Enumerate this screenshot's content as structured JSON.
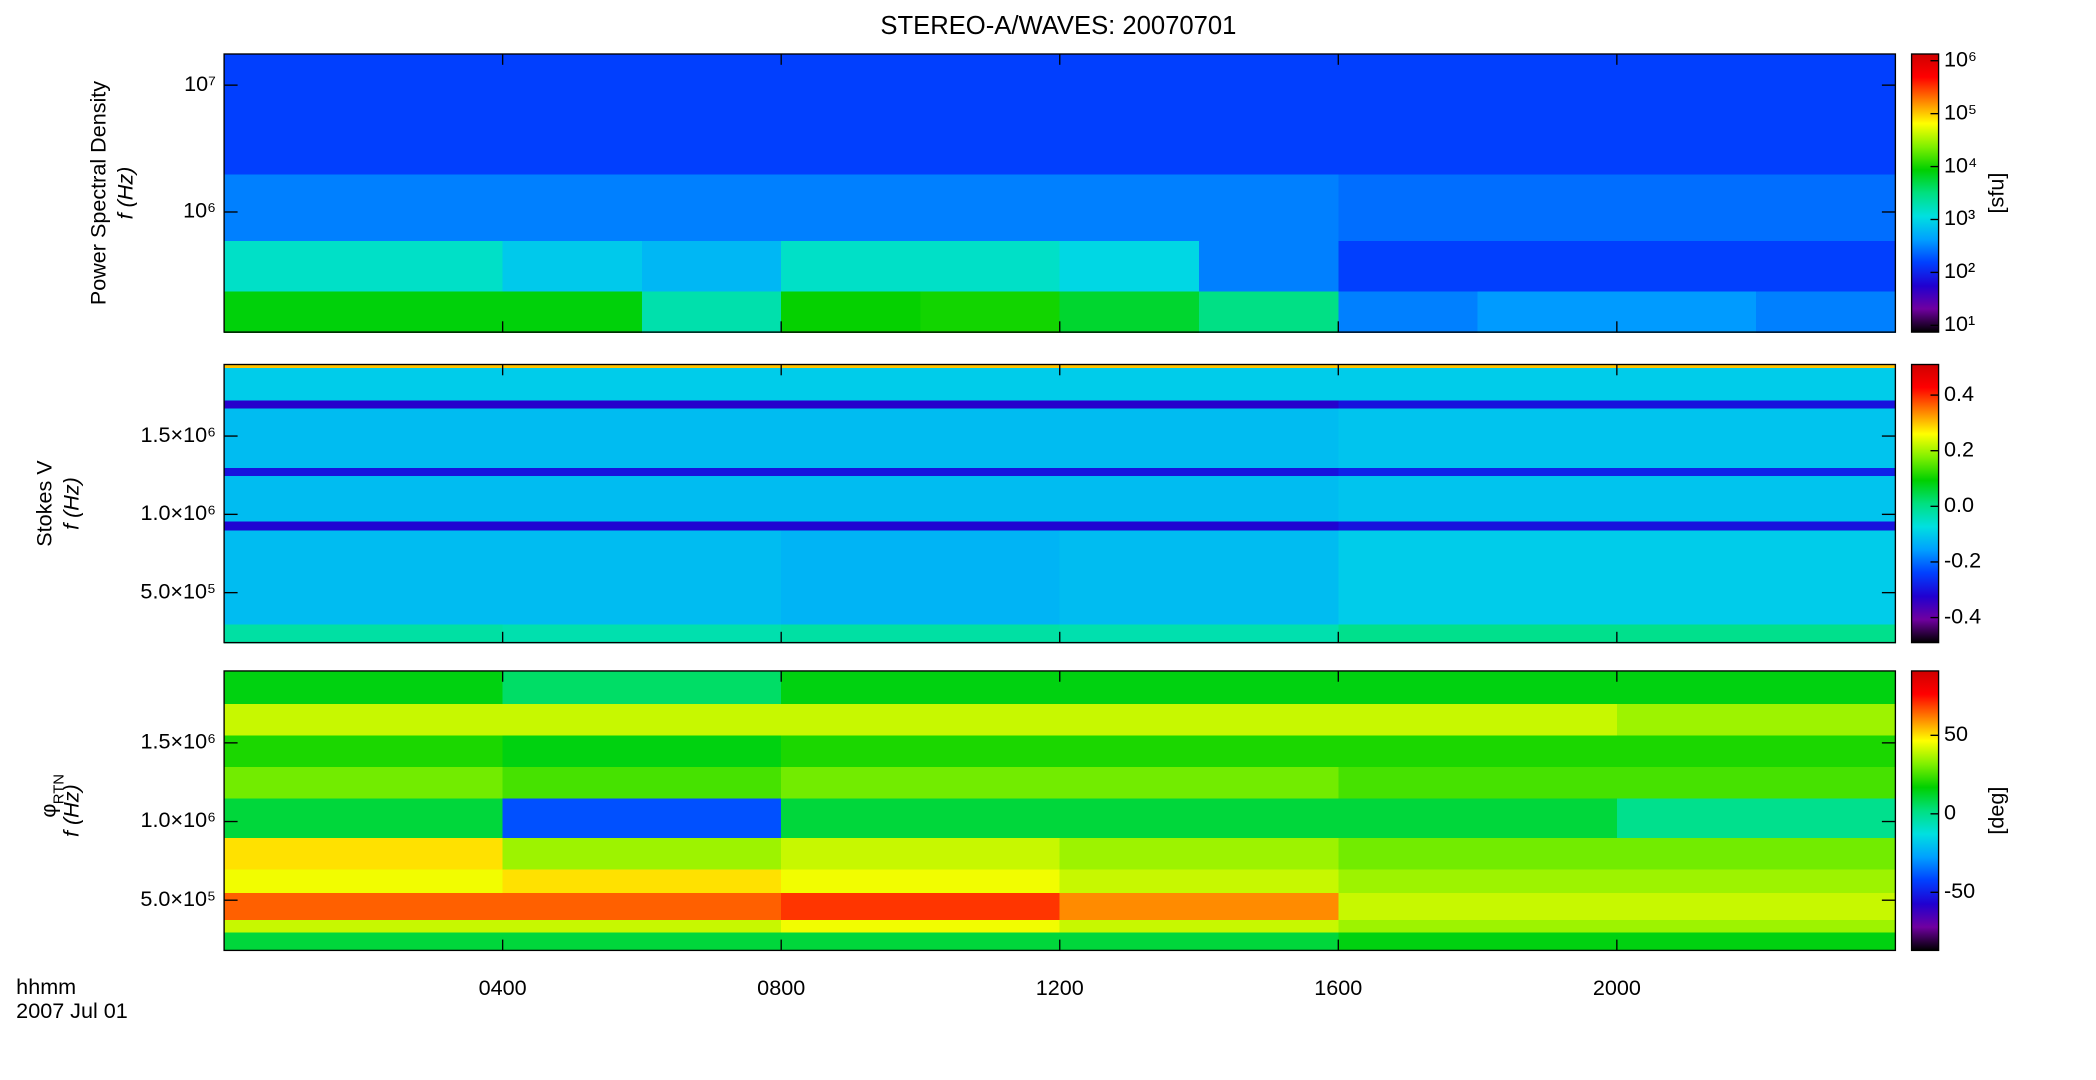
{
  "chart_data": [
    {
      "type": "heatmap",
      "title": "STEREO-A/WAVES: 20070701",
      "ylabel": "Power Spectral Density",
      "yunit_label": "f (Hz)",
      "xlim": [
        0,
        24
      ],
      "ylog": true,
      "ylim": [
        113000,
        17600000
      ],
      "yticks": [
        {
          "value": 1000000,
          "label": "10⁶"
        },
        {
          "value": 10000000,
          "label": "10⁷"
        }
      ],
      "x_bins": [
        0,
        2,
        4,
        6,
        8,
        10,
        12,
        14,
        16,
        18,
        20,
        22,
        24
      ],
      "y_bins": [
        113000,
        240000,
        600000,
        2000000,
        17600000
      ],
      "values": [
        [
          8000,
          8000,
          8000,
          2000,
          9000,
          10000,
          6000,
          3000,
          300,
          400,
          400,
          300
        ],
        [
          1500,
          1500,
          800,
          600,
          1500,
          1500,
          1000,
          300,
          150,
          150,
          150,
          150
        ],
        [
          300,
          300,
          300,
          300,
          300,
          300,
          300,
          300,
          250,
          250,
          250,
          250
        ],
        [
          150,
          150,
          150,
          150,
          150,
          150,
          150,
          150,
          150,
          150,
          150,
          150
        ]
      ],
      "clog": true,
      "clim": [
        7.45,
        1340000
      ],
      "cticks": [
        {
          "value": 10,
          "label": "10¹"
        },
        {
          "value": 100,
          "label": "10²"
        },
        {
          "value": 1000,
          "label": "10³"
        },
        {
          "value": 10000,
          "label": "10⁴"
        },
        {
          "value": 100000,
          "label": "10⁵"
        },
        {
          "value": 1000000,
          "label": "10⁶"
        }
      ],
      "clabel": "[sfu]",
      "colorscale": [
        "#000000",
        "#7000a0",
        "#2000d0",
        "#0040ff",
        "#00a0ff",
        "#00e0e0",
        "#00e080",
        "#00d000",
        "#80f000",
        "#ffff00",
        "#ff8000",
        "#ff0000",
        "#d00000"
      ]
    },
    {
      "type": "heatmap",
      "ylabel": "Stokes V",
      "yunit_label": "f (Hz)",
      "xlim": [
        0,
        24
      ],
      "ylog": false,
      "ylim": [
        181000,
        1957000
      ],
      "yticks": [
        {
          "value": 500000,
          "label": "5.0×10⁵"
        },
        {
          "value": 1000000,
          "label": "1.0×10⁶"
        },
        {
          "value": 1500000,
          "label": "1.5×10⁶"
        }
      ],
      "x_bins": [
        0,
        4,
        8,
        12,
        16,
        20,
        24
      ],
      "y_bins": [
        181000,
        300000,
        900000,
        960000,
        1250000,
        1300000,
        1680000,
        1730000,
        1940000,
        1957000
      ],
      "values": [
        [
          -0.02,
          -0.03,
          -0.02,
          -0.03,
          0.0,
          0.0
        ],
        [
          -0.12,
          -0.12,
          -0.13,
          -0.12,
          -0.1,
          -0.1
        ],
        [
          -0.32,
          -0.32,
          -0.32,
          -0.32,
          -0.3,
          -0.3
        ],
        [
          -0.12,
          -0.12,
          -0.12,
          -0.12,
          -0.11,
          -0.11
        ],
        [
          -0.3,
          -0.3,
          -0.3,
          -0.3,
          -0.28,
          -0.28
        ],
        [
          -0.12,
          -0.12,
          -0.12,
          -0.12,
          -0.11,
          -0.11
        ],
        [
          -0.33,
          -0.33,
          -0.33,
          -0.33,
          -0.3,
          -0.3
        ],
        [
          -0.1,
          -0.1,
          -0.1,
          -0.1,
          -0.1,
          -0.1
        ],
        [
          0.3,
          0.3,
          0.3,
          0.3,
          0.3,
          0.3
        ]
      ],
      "clog": false,
      "clim": [
        -0.49,
        0.51
      ],
      "cticks": [
        {
          "value": -0.4,
          "label": "-0.4"
        },
        {
          "value": -0.2,
          "label": "-0.2"
        },
        {
          "value": 0,
          "label": "0.0"
        },
        {
          "value": 0.2,
          "label": "0.2"
        },
        {
          "value": 0.4,
          "label": "0.4"
        }
      ],
      "colorscale": [
        "#000000",
        "#7000a0",
        "#2000d0",
        "#0040ff",
        "#00a0ff",
        "#00e0e0",
        "#00e080",
        "#00d000",
        "#80f000",
        "#ffff00",
        "#ff8000",
        "#ff0000",
        "#d00000"
      ]
    },
    {
      "type": "heatmap",
      "ylabel": "φ",
      "ylabel_subscript": "RTN",
      "yunit_label": "f (Hz)",
      "xlim": [
        0,
        24
      ],
      "ylog": false,
      "ylim": [
        181000,
        1957000
      ],
      "yticks": [
        {
          "value": 500000,
          "label": "5.0×10⁵"
        },
        {
          "value": 1000000,
          "label": "1.0×10⁶"
        },
        {
          "value": 1500000,
          "label": "1.5×10⁶"
        }
      ],
      "xticks": [
        {
          "value": 4,
          "label": "0400"
        },
        {
          "value": 8,
          "label": "0800"
        },
        {
          "value": 12,
          "label": "1200"
        },
        {
          "value": 16,
          "label": "1600"
        },
        {
          "value": 20,
          "label": "2000"
        }
      ],
      "xlabel": "hhmm",
      "date_label": "2007 Jul 01",
      "x_bins": [
        0,
        4,
        8,
        12,
        16,
        20,
        24
      ],
      "y_bins": [
        181000,
        300000,
        380000,
        550000,
        700000,
        900000,
        1150000,
        1350000,
        1550000,
        1750000,
        1957000
      ],
      "values": [
        [
          10,
          10,
          10,
          10,
          15,
          15
        ],
        [
          40,
          40,
          45,
          40,
          35,
          35
        ],
        [
          65,
          65,
          70,
          60,
          40,
          40
        ],
        [
          45,
          50,
          45,
          40,
          35,
          35
        ],
        [
          50,
          35,
          40,
          35,
          30,
          30
        ],
        [
          10,
          -40,
          10,
          10,
          10,
          0
        ],
        [
          30,
          25,
          30,
          30,
          25,
          25
        ],
        [
          20,
          15,
          20,
          20,
          20,
          20
        ],
        [
          40,
          40,
          40,
          40,
          40,
          35
        ],
        [
          15,
          5,
          15,
          15,
          15,
          15
        ]
      ],
      "clog": false,
      "clim": [
        -87,
        91
      ],
      "cticks": [
        -50,
        0,
        50
      ],
      "clabel": "[deg]",
      "colorscale": [
        "#000000",
        "#7000a0",
        "#2000d0",
        "#0040ff",
        "#00a0ff",
        "#00e0e0",
        "#00e080",
        "#00d000",
        "#80f000",
        "#ffff00",
        "#ff8000",
        "#ff0000",
        "#d00000"
      ]
    }
  ]
}
